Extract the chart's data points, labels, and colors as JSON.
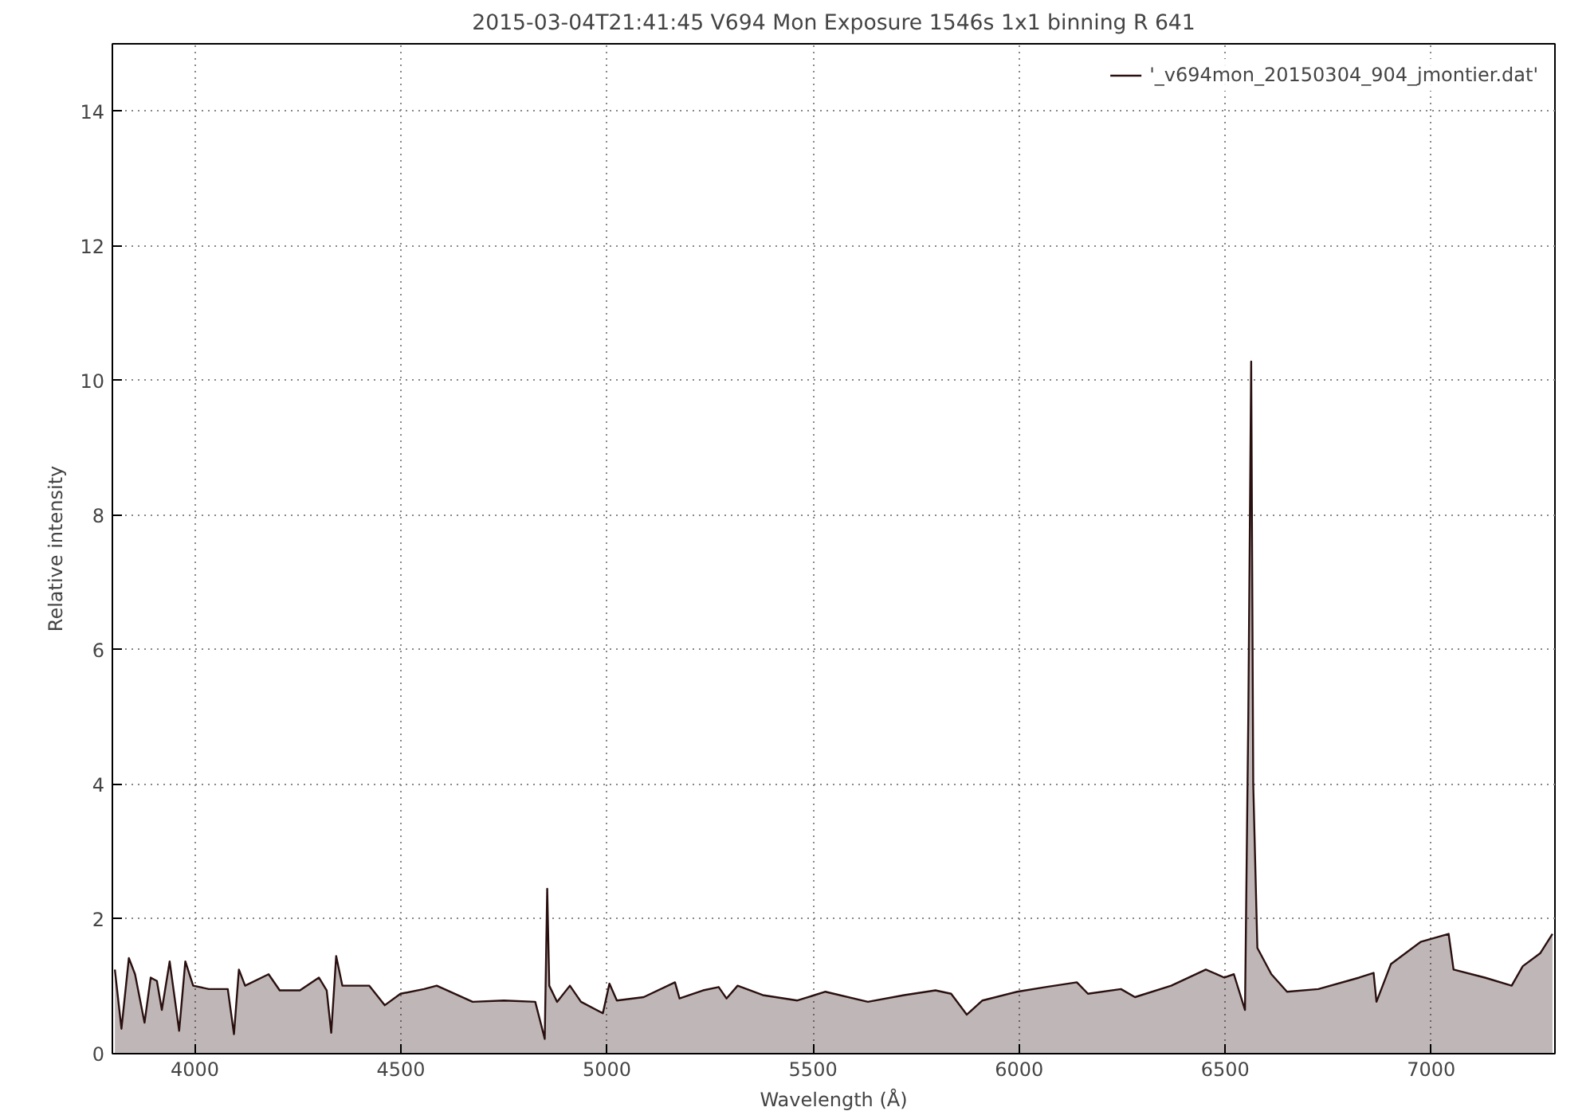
{
  "chart_data": {
    "type": "area",
    "title": "2015-03-04T21:41:45 V694 Mon Exposure 1546s 1x1 binning R 641",
    "xlabel": "Wavelength (Å)",
    "ylabel": "Relative intensity",
    "xlim": [
      3800,
      7300
    ],
    "ylim": [
      0,
      15
    ],
    "xticks": [
      4000,
      4500,
      5000,
      5500,
      6000,
      6500,
      7000
    ],
    "yticks": [
      0,
      2,
      4,
      6,
      8,
      10,
      12,
      14
    ],
    "grid": true,
    "legend": "top right",
    "series": [
      {
        "name": "'_v694mon_20150304_904_jmontier.dat'",
        "color": "#2a0f0f",
        "x": [
          3806,
          3822,
          3840,
          3855,
          3878,
          3893,
          3908,
          3920,
          3939,
          3962,
          3977,
          3996,
          4034,
          4080,
          4095,
          4107,
          4122,
          4179,
          4206,
          4255,
          4301,
          4320,
          4331,
          4343,
          4358,
          4423,
          4461,
          4499,
          4556,
          4587,
          4674,
          4750,
          4826,
          4849,
          4855,
          4860,
          4879,
          4910,
          4937,
          4990,
          5006,
          5024,
          5089,
          5165,
          5176,
          5233,
          5271,
          5290,
          5317,
          5378,
          5462,
          5530,
          5633,
          5721,
          5797,
          5835,
          5873,
          5911,
          5995,
          6064,
          6140,
          6167,
          6247,
          6281,
          6369,
          6453,
          6498,
          6521,
          6548,
          6556,
          6563,
          6568,
          6578,
          6612,
          6650,
          6726,
          6825,
          6860,
          6867,
          6902,
          6974,
          7042,
          7054,
          7130,
          7195,
          7222,
          7264,
          7294
        ],
        "values": [
          1.25,
          0.37,
          1.42,
          1.18,
          0.46,
          1.13,
          1.08,
          0.65,
          1.37,
          0.34,
          1.37,
          1.01,
          0.96,
          0.96,
          0.29,
          1.25,
          1.01,
          1.18,
          0.94,
          0.94,
          1.13,
          0.94,
          0.31,
          1.45,
          1.01,
          1.01,
          0.72,
          0.89,
          0.96,
          1.01,
          0.77,
          0.79,
          0.77,
          0.22,
          2.45,
          1.01,
          0.77,
          1.01,
          0.77,
          0.6,
          1.04,
          0.79,
          0.84,
          1.06,
          0.82,
          0.94,
          0.99,
          0.82,
          1.01,
          0.87,
          0.79,
          0.92,
          0.77,
          0.87,
          0.94,
          0.89,
          0.58,
          0.79,
          0.92,
          0.99,
          1.06,
          0.89,
          0.96,
          0.84,
          1.01,
          1.25,
          1.13,
          1.18,
          0.65,
          5.0,
          10.28,
          4.0,
          1.57,
          1.18,
          0.92,
          0.96,
          1.13,
          1.2,
          0.77,
          1.33,
          1.66,
          1.78,
          1.25,
          1.13,
          1.01,
          1.3,
          1.49,
          1.78
        ]
      }
    ]
  }
}
